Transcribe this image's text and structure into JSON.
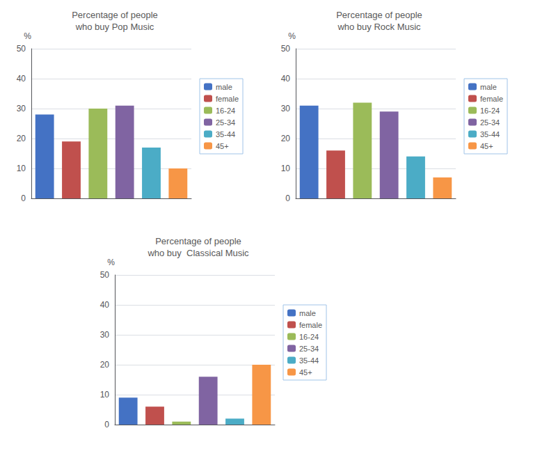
{
  "chart_data": [
    {
      "type": "bar",
      "title": "Percentage of people\nwho buy Pop Music",
      "categories": [
        "male",
        "female",
        "16-24",
        "25-34",
        "35-44",
        "45+"
      ],
      "values": [
        28,
        19,
        30,
        31,
        17,
        10
      ],
      "colors": [
        "#4472c4",
        "#c0504d",
        "#9bbb59",
        "#8064a2",
        "#4bacc6",
        "#f79646"
      ],
      "ylabel": "%",
      "ylim": [
        0,
        50
      ],
      "yticks": [
        0,
        10,
        20,
        30,
        40,
        50
      ],
      "grid": true,
      "legend": "right",
      "tick_labels": "y"
    },
    {
      "type": "bar",
      "title": "Percentage of people\nwho buy Rock Music",
      "categories": [
        "male",
        "female",
        "16-24",
        "25-34",
        "35-44",
        "45+"
      ],
      "values": [
        31,
        16,
        32,
        29,
        14,
        7
      ],
      "colors": [
        "#4472c4",
        "#c0504d",
        "#9bbb59",
        "#8064a2",
        "#4bacc6",
        "#f79646"
      ],
      "ylabel": "%",
      "ylim": [
        0,
        50
      ],
      "yticks": [
        0,
        10,
        20,
        30,
        40,
        50
      ],
      "grid": true,
      "legend": "right",
      "tick_labels": "y"
    },
    {
      "type": "bar",
      "title": "Percentage of people\nwho buy  Classical Music",
      "categories": [
        "male",
        "female",
        "16-24",
        "25-34",
        "35-44",
        "45+"
      ],
      "values": [
        9,
        6,
        1,
        16,
        2,
        20
      ],
      "colors": [
        "#4472c4",
        "#c0504d",
        "#9bbb59",
        "#8064a2",
        "#4bacc6",
        "#f79646"
      ],
      "ylabel": "%",
      "ylim": [
        0,
        50
      ],
      "yticks": [
        0,
        10,
        20,
        30,
        40,
        50
      ],
      "grid": true,
      "legend": "right",
      "tick_labels": "y"
    }
  ]
}
